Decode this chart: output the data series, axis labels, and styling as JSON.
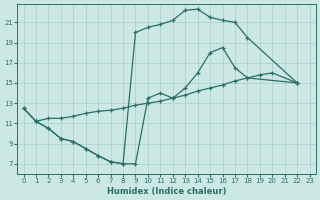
{
  "xlabel": "Humidex (Indice chaleur)",
  "bg_color": "#cce8e5",
  "grid_color": "#aacece",
  "line_color": "#2a6e68",
  "xlim": [
    -0.5,
    23.5
  ],
  "ylim": [
    6.0,
    22.8
  ],
  "xticks": [
    0,
    1,
    2,
    3,
    4,
    5,
    6,
    7,
    8,
    9,
    10,
    11,
    12,
    13,
    14,
    15,
    16,
    17,
    18,
    19,
    20,
    21,
    22,
    23
  ],
  "yticks": [
    7,
    9,
    11,
    13,
    15,
    17,
    19,
    21
  ],
  "line1_x": [
    0,
    1,
    2,
    3,
    4,
    5,
    6,
    7,
    8,
    9,
    10,
    11,
    12,
    13,
    14,
    15,
    16,
    17,
    18,
    22
  ],
  "line1_y": [
    12.5,
    11.2,
    10.5,
    9.5,
    9.2,
    8.5,
    7.8,
    7.2,
    7.0,
    7.0,
    13.5,
    14.0,
    13.5,
    14.5,
    16.0,
    18.0,
    18.5,
    16.5,
    15.5,
    15.0
  ],
  "line2_x": [
    1,
    2,
    3,
    4,
    5,
    6,
    7,
    8,
    9,
    10,
    11,
    12,
    13,
    14,
    15,
    16,
    17,
    18,
    19,
    20,
    22
  ],
  "line2_y": [
    11.2,
    11.5,
    11.5,
    11.7,
    12.0,
    12.2,
    12.3,
    12.5,
    12.8,
    13.0,
    13.2,
    13.5,
    13.8,
    14.2,
    14.5,
    14.8,
    15.2,
    15.5,
    15.8,
    16.0,
    15.0
  ],
  "line3_x": [
    0,
    1,
    2,
    3,
    4,
    5,
    6,
    7,
    8,
    9,
    10,
    11,
    12,
    13,
    14,
    15,
    16,
    17,
    18,
    22
  ],
  "line3_y": [
    12.5,
    11.2,
    10.5,
    9.5,
    9.2,
    8.5,
    7.8,
    7.2,
    7.0,
    20.0,
    20.5,
    20.8,
    21.2,
    22.2,
    22.3,
    21.5,
    21.2,
    21.0,
    19.5,
    15.0
  ]
}
